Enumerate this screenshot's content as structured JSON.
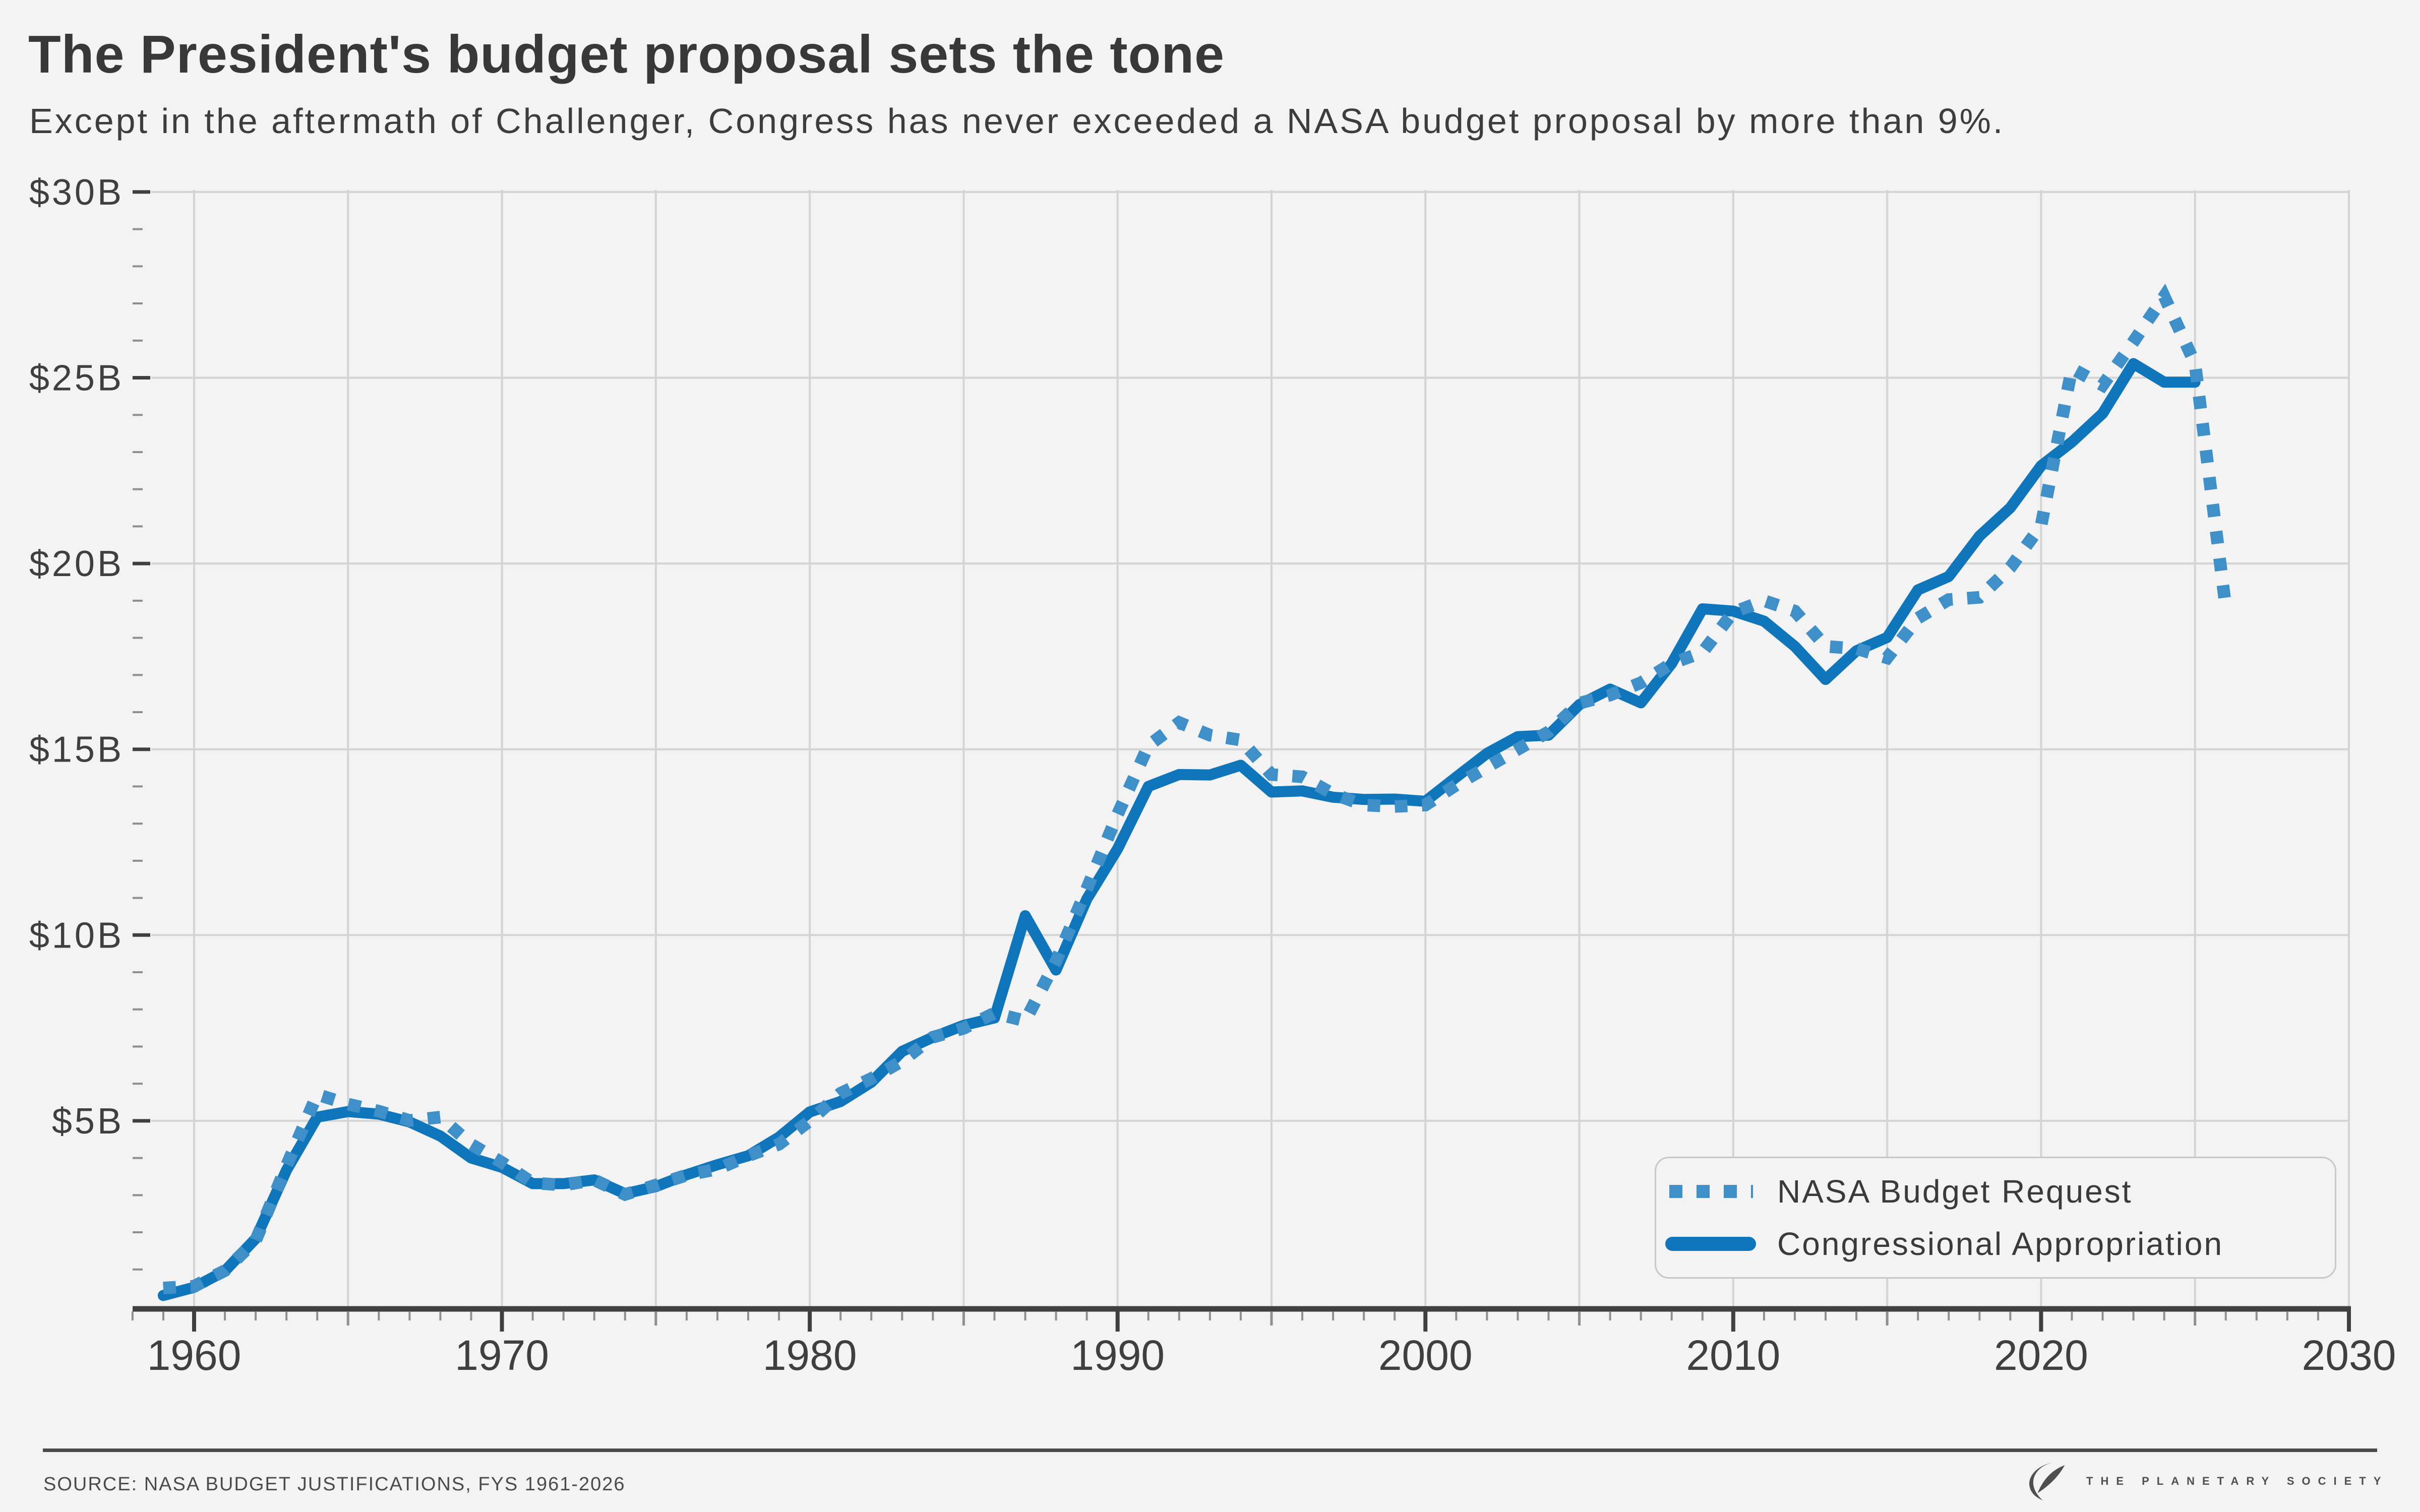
{
  "header": {
    "title": "The President's budget proposal sets the tone",
    "subtitle": "Except in the aftermath of Challenger, Congress has never exceeded a NASA budget proposal by more than 9%."
  },
  "legend": {
    "items": [
      {
        "label": "NASA Budget Request",
        "style": "dotted"
      },
      {
        "label": "Congressional Appropriation",
        "style": "solid"
      }
    ]
  },
  "footer": {
    "source": "SOURCE: NASA BUDGET JUSTIFICATIONS, FYS 1961-2026",
    "brand": "THE PLANETARY SOCIETY"
  },
  "colors": {
    "background": "#f3f3f3",
    "grid": "#d4d4d4",
    "axis": "#3f3f3f",
    "tick_minor": "#8f8f8f",
    "text": "#3f3f3f",
    "line_solid": "#0f76bb",
    "line_dotted": "#3f8fc9",
    "footer_text": "#4b4b4b",
    "legend_border": "#c8c8c8"
  },
  "chart_data": {
    "type": "line",
    "title": "The President's budget proposal sets the tone",
    "subtitle": "Except in the aftermath of Challenger, Congress has never exceeded a NASA budget proposal by more than 9%.",
    "xlabel": "",
    "ylabel": "",
    "units": "billions of USD",
    "xlim": [
      1958,
      2030
    ],
    "ylim": [
      0,
      30
    ],
    "grid": true,
    "legend_position": "lower right",
    "x_tick_labels": [
      "1960",
      "1970",
      "1980",
      "1990",
      "2000",
      "2010",
      "2020",
      "2030"
    ],
    "x_tick_years_labeled": [
      1960,
      1970,
      1980,
      1990,
      2000,
      2010,
      2020,
      2030
    ],
    "x_gridline_years": [
      1960,
      1965,
      1970,
      1975,
      1980,
      1985,
      1990,
      1995,
      2000,
      2005,
      2010,
      2015,
      2020,
      2025,
      2030
    ],
    "y_gridline_values": [
      5,
      10,
      15,
      20,
      25,
      30
    ],
    "y_tick_labels": [
      "$5B",
      "$10B",
      "$15B",
      "$20B",
      "$25B",
      "$30B"
    ],
    "x": [
      1959,
      1960,
      1961,
      1962,
      1963,
      1964,
      1965,
      1966,
      1967,
      1968,
      1969,
      1970,
      1971,
      1972,
      1973,
      1974,
      1975,
      1976,
      1977,
      1978,
      1979,
      1980,
      1981,
      1982,
      1983,
      1984,
      1985,
      1986,
      1987,
      1988,
      1989,
      1990,
      1991,
      1992,
      1993,
      1994,
      1995,
      1996,
      1997,
      1998,
      1999,
      2000,
      2001,
      2002,
      2003,
      2004,
      2005,
      2006,
      2007,
      2008,
      2009,
      2010,
      2011,
      2012,
      2013,
      2014,
      2015,
      2016,
      2017,
      2018,
      2019,
      2020,
      2021,
      2022,
      2023,
      2024,
      2025,
      2026
    ],
    "series": [
      {
        "name": "NASA Budget Request",
        "style": "dotted",
        "color": "#3f8fc9",
        "values": [
          0.5,
          0.55,
          0.97,
          1.78,
          3.79,
          5.71,
          5.45,
          5.26,
          5.01,
          5.1,
          4.37,
          3.88,
          3.33,
          3.27,
          3.41,
          3.02,
          3.27,
          3.54,
          3.7,
          4.06,
          4.37,
          5.0,
          5.74,
          6.14,
          6.61,
          7.25,
          7.49,
          7.9,
          7.69,
          9.3,
          11.25,
          13.25,
          15.1,
          15.72,
          15.38,
          15.25,
          14.32,
          14.26,
          13.8,
          13.5,
          13.46,
          13.5,
          14.04,
          14.52,
          15.0,
          15.47,
          16.24,
          16.46,
          16.79,
          17.31,
          17.61,
          18.69,
          19.0,
          18.72,
          17.77,
          17.71,
          17.46,
          18.53,
          19.03,
          19.09,
          19.89,
          21.02,
          25.25,
          24.8,
          25.97,
          27.19,
          25.38,
          18.81
        ]
      },
      {
        "name": "Congressional Appropriation",
        "style": "solid",
        "color": "#0f76bb",
        "values": [
          0.3,
          0.52,
          0.96,
          1.83,
          3.67,
          5.1,
          5.25,
          5.18,
          4.97,
          4.59,
          4.0,
          3.75,
          3.31,
          3.31,
          3.41,
          3.04,
          3.23,
          3.55,
          3.82,
          4.06,
          4.56,
          5.24,
          5.52,
          6.04,
          6.87,
          7.25,
          7.57,
          7.77,
          10.52,
          9.06,
          10.97,
          12.32,
          14.0,
          14.32,
          14.31,
          14.57,
          13.85,
          13.88,
          13.71,
          13.65,
          13.66,
          13.6,
          14.25,
          14.89,
          15.34,
          15.38,
          16.2,
          16.62,
          16.25,
          17.31,
          18.78,
          18.72,
          18.45,
          17.77,
          16.88,
          17.65,
          18.01,
          19.29,
          19.65,
          20.74,
          21.5,
          22.63,
          23.27,
          24.04,
          25.38,
          24.88,
          24.88,
          null
        ]
      }
    ]
  }
}
